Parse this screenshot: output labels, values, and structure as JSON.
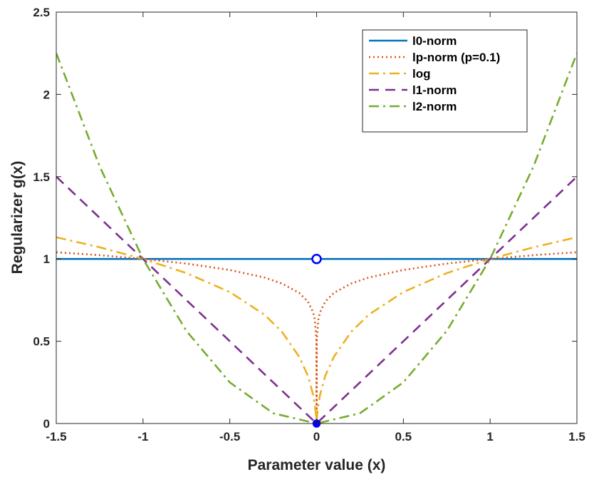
{
  "chart_data": {
    "type": "line",
    "title": "",
    "xlabel": "Parameter value (x)",
    "ylabel": "Regularizer g(x)",
    "xlim": [
      -1.5,
      1.5
    ],
    "ylim": [
      0,
      2.5
    ],
    "xticks": [
      -1.5,
      -1,
      -0.5,
      0,
      0.5,
      1,
      1.5
    ],
    "xtick_labels": [
      "-1.5",
      "-1",
      "-0.5",
      "0",
      "0.5",
      "1",
      "1.5"
    ],
    "yticks": [
      0,
      0.5,
      1,
      1.5,
      2,
      2.5
    ],
    "ytick_labels": [
      "0",
      "0.5",
      "1",
      "1.5",
      "2",
      "2.5"
    ],
    "grid": false,
    "legend_position": "top-right",
    "series": [
      {
        "name": "l0-norm",
        "color": "#0072BD",
        "dash": "solid",
        "x": [
          -1.5,
          -1,
          -0.5,
          0,
          0.5,
          1,
          1.5
        ],
        "y": [
          1,
          1,
          1,
          1,
          1,
          1,
          1
        ],
        "markers": [
          {
            "x": 0,
            "y": 1,
            "style": "open-circle",
            "color": "#0000FF"
          },
          {
            "x": 0,
            "y": 0,
            "style": "filled-circle",
            "color": "#0000FF"
          }
        ]
      },
      {
        "name": "lp-norm (p=0.1)",
        "color": "#D95319",
        "dash": "dotted",
        "x": [
          -1.5,
          -1.25,
          -1,
          -0.75,
          -0.5,
          -0.3,
          -0.2,
          -0.1,
          -0.05,
          -0.02,
          -0.01,
          -0.001,
          0,
          0.001,
          0.01,
          0.02,
          0.05,
          0.1,
          0.2,
          0.3,
          0.5,
          0.75,
          1,
          1.25,
          1.5
        ],
        "y": [
          1.041,
          1.023,
          1,
          0.972,
          0.933,
          0.887,
          0.851,
          0.794,
          0.741,
          0.676,
          0.631,
          0.501,
          0,
          0.501,
          0.631,
          0.676,
          0.741,
          0.794,
          0.851,
          0.887,
          0.933,
          0.972,
          1,
          1.023,
          1.041
        ]
      },
      {
        "name": "log",
        "color": "#EDB120",
        "dash": "dashdot",
        "x": [
          -1.5,
          -1.25,
          -1,
          -0.75,
          -0.5,
          -0.3,
          -0.2,
          -0.1,
          -0.05,
          -0.02,
          -0.01,
          -0.001,
          0,
          0.001,
          0.01,
          0.02,
          0.05,
          0.1,
          0.2,
          0.3,
          0.5,
          0.75,
          1,
          1.25,
          1.5
        ],
        "y": [
          1.132,
          1.071,
          1,
          0.914,
          0.799,
          0.661,
          0.558,
          0.406,
          0.29,
          0.175,
          0.112,
          0.027,
          0,
          0.027,
          0.112,
          0.175,
          0.29,
          0.406,
          0.558,
          0.661,
          0.799,
          0.914,
          1,
          1.071,
          1.132
        ]
      },
      {
        "name": "l1-norm",
        "color": "#7E2F8E",
        "dash": "dashed",
        "x": [
          -1.5,
          0,
          1.5
        ],
        "y": [
          1.5,
          0,
          1.5
        ]
      },
      {
        "name": "l2-norm",
        "color": "#77AC30",
        "dash": "dashdot",
        "x": [
          -1.5,
          -1.25,
          -1,
          -0.75,
          -0.5,
          -0.25,
          0,
          0.25,
          0.5,
          0.75,
          1,
          1.25,
          1.5
        ],
        "y": [
          2.25,
          1.5625,
          1,
          0.5625,
          0.25,
          0.0625,
          0,
          0.0625,
          0.25,
          0.5625,
          1,
          1.5625,
          2.25
        ]
      }
    ]
  }
}
